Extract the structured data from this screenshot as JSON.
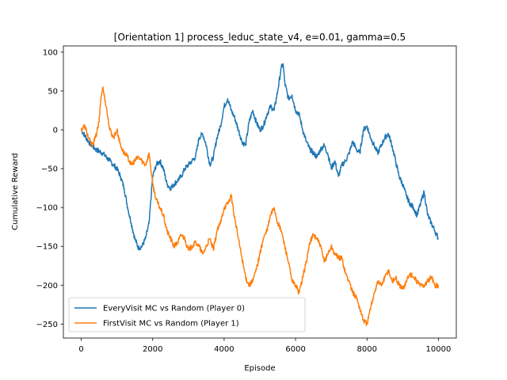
{
  "chart_data": {
    "type": "line",
    "title": "[Orientation 1] process_leduc_state_v4, e=0.01, gamma=0.5",
    "xlabel": "Episode",
    "ylabel": "Cumulative Reward",
    "xlim": [
      -500,
      10500
    ],
    "ylim": [
      -268,
      108
    ],
    "xticks": [
      0,
      2000,
      4000,
      6000,
      8000,
      10000
    ],
    "yticks": [
      100,
      50,
      0,
      -50,
      -100,
      -150,
      -200,
      -250
    ],
    "xtick_labels": [
      "0",
      "2000",
      "4000",
      "6000",
      "8000",
      "10000"
    ],
    "ytick_labels": [
      "100",
      "50",
      "0",
      "−50",
      "−100",
      "−150",
      "−200",
      "−250"
    ],
    "grid": false,
    "legend": "lower-left",
    "colors": {
      "series0": "#1f77b4",
      "series1": "#ff7f0e"
    },
    "series": [
      {
        "name": "EveryVisit MC vs Random (Player 0)",
        "x": [
          0,
          200,
          400,
          600,
          800,
          1000,
          1100,
          1200,
          1300,
          1400,
          1500,
          1600,
          1700,
          1800,
          1900,
          2000,
          2100,
          2200,
          2300,
          2400,
          2500,
          2600,
          2700,
          2800,
          2900,
          3000,
          3100,
          3200,
          3300,
          3400,
          3500,
          3600,
          3700,
          3800,
          3900,
          4000,
          4100,
          4200,
          4300,
          4400,
          4500,
          4600,
          4700,
          4800,
          4900,
          5000,
          5100,
          5200,
          5300,
          5400,
          5500,
          5600,
          5650,
          5700,
          5800,
          5900,
          6000,
          6100,
          6200,
          6300,
          6400,
          6500,
          6600,
          6700,
          6800,
          6900,
          7000,
          7100,
          7200,
          7300,
          7400,
          7500,
          7600,
          7700,
          7800,
          7900,
          8000,
          8100,
          8200,
          8300,
          8400,
          8500,
          8600,
          8700,
          8800,
          8900,
          9000,
          9100,
          9200,
          9300,
          9400,
          9500,
          9600,
          9700,
          9800,
          9900,
          10000
        ],
        "y": [
          0,
          -15,
          -25,
          -30,
          -40,
          -50,
          -60,
          -75,
          -100,
          -120,
          -140,
          -152,
          -150,
          -140,
          -120,
          -60,
          -45,
          -40,
          -50,
          -70,
          -75,
          -70,
          -65,
          -60,
          -50,
          -45,
          -40,
          -35,
          -10,
          -5,
          -20,
          -45,
          -35,
          -10,
          5,
          30,
          40,
          25,
          15,
          0,
          -15,
          -20,
          10,
          25,
          10,
          0,
          5,
          20,
          30,
          25,
          50,
          80,
          85,
          60,
          40,
          45,
          25,
          20,
          0,
          -15,
          -25,
          -30,
          -35,
          -25,
          -20,
          -30,
          -50,
          -40,
          -60,
          -45,
          -40,
          -30,
          -15,
          -25,
          -30,
          0,
          5,
          -10,
          -20,
          -30,
          -20,
          -10,
          -5,
          -20,
          -40,
          -60,
          -70,
          -85,
          -95,
          -100,
          -110,
          -95,
          -80,
          -110,
          -120,
          -130,
          -140
        ]
      },
      {
        "name": "FirstVisit MC vs Random (Player 1)",
        "x": [
          0,
          100,
          200,
          300,
          400,
          500,
          550,
          600,
          700,
          800,
          900,
          1000,
          1100,
          1200,
          1300,
          1400,
          1500,
          1600,
          1700,
          1800,
          1900,
          2000,
          2100,
          2200,
          2300,
          2400,
          2500,
          2600,
          2700,
          2800,
          2900,
          3000,
          3100,
          3200,
          3300,
          3400,
          3500,
          3600,
          3700,
          3800,
          3900,
          4000,
          4100,
          4200,
          4300,
          4400,
          4500,
          4600,
          4700,
          4800,
          4900,
          5000,
          5100,
          5200,
          5300,
          5400,
          5500,
          5600,
          5700,
          5800,
          5900,
          6000,
          6100,
          6200,
          6300,
          6400,
          6500,
          6600,
          6700,
          6800,
          6900,
          7000,
          7100,
          7200,
          7300,
          7400,
          7500,
          7600,
          7700,
          7800,
          7900,
          8000,
          8100,
          8200,
          8300,
          8400,
          8500,
          8600,
          8700,
          8800,
          8900,
          9000,
          9100,
          9200,
          9300,
          9400,
          9500,
          9600,
          9700,
          9800,
          9900,
          10000
        ],
        "y": [
          0,
          5,
          -10,
          -20,
          -10,
          10,
          40,
          55,
          30,
          0,
          -10,
          0,
          -20,
          -30,
          -35,
          -45,
          -40,
          -35,
          -40,
          -45,
          -30,
          -70,
          -90,
          -100,
          -110,
          -130,
          -140,
          -150,
          -145,
          -135,
          -140,
          -155,
          -150,
          -145,
          -150,
          -160,
          -150,
          -140,
          -155,
          -130,
          -120,
          -100,
          -95,
          -85,
          -115,
          -140,
          -165,
          -190,
          -200,
          -195,
          -180,
          -160,
          -140,
          -130,
          -110,
          -100,
          -120,
          -130,
          -150,
          -170,
          -195,
          -200,
          -210,
          -190,
          -170,
          -145,
          -135,
          -140,
          -150,
          -170,
          -160,
          -150,
          -160,
          -165,
          -165,
          -185,
          -195,
          -210,
          -215,
          -230,
          -245,
          -250,
          -230,
          -210,
          -195,
          -200,
          -190,
          -180,
          -195,
          -190,
          -200,
          -205,
          -195,
          -185,
          -190,
          -195,
          -200,
          -200,
          -195,
          -190,
          -200,
          -200
        ]
      }
    ]
  }
}
